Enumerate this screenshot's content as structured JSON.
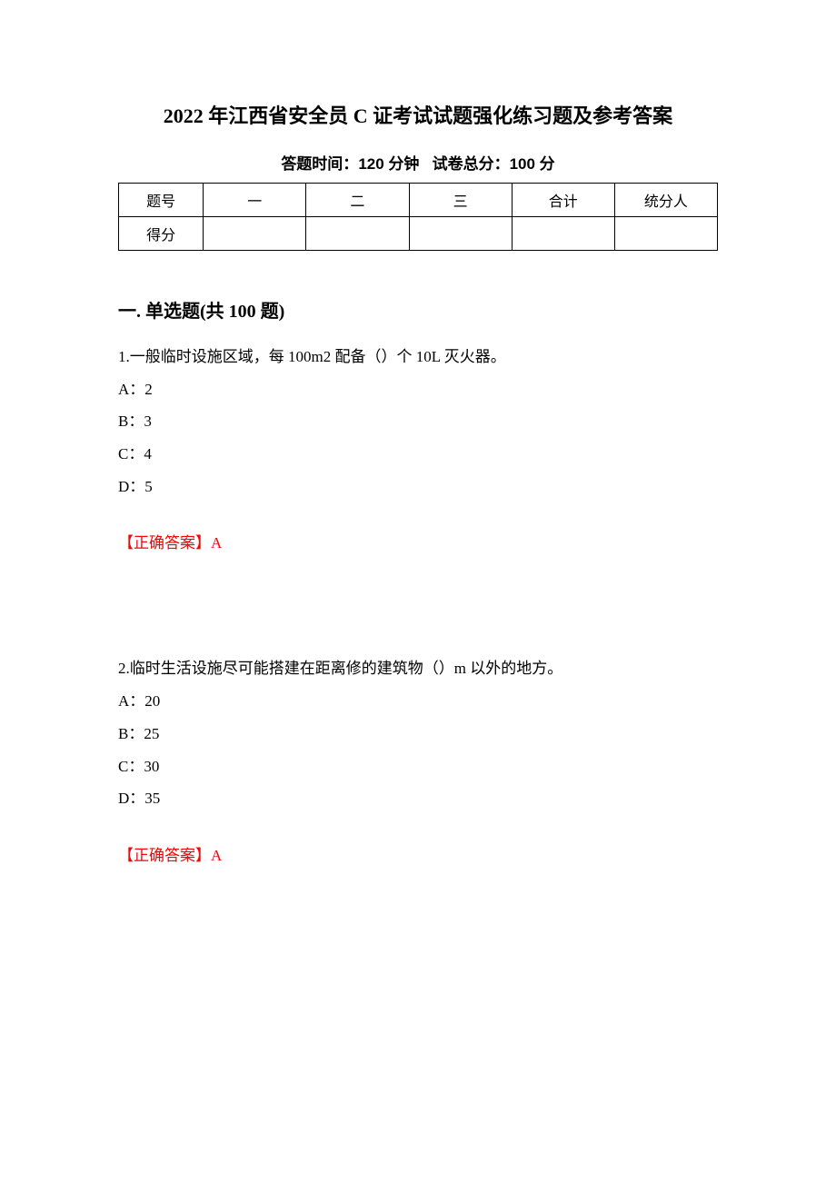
{
  "title": "2022 年江西省安全员 C 证考试试题强化练习题及参考答案",
  "subtitle_time_label": "答题时间：",
  "subtitle_time_value": "120 分钟",
  "subtitle_score_label": "试卷总分：",
  "subtitle_score_value": "100 分",
  "table": {
    "headers": [
      "题号",
      "一",
      "二",
      "三",
      "合计",
      "统分人"
    ],
    "row_label": "得分",
    "row_cells": [
      "",
      "",
      "",
      "",
      ""
    ]
  },
  "section_heading": "一. 单选题(共 100 题)",
  "questions": [
    {
      "number": "1.",
      "text": "一般临时设施区域，每 100m2 配备（）个 10L 灭火器。",
      "options": [
        {
          "label": "A：",
          "value": "2"
        },
        {
          "label": "B：",
          "value": "3"
        },
        {
          "label": "C：",
          "value": "4"
        },
        {
          "label": "D：",
          "value": "5"
        }
      ],
      "answer_label": "【正确答案】",
      "answer_value": "A"
    },
    {
      "number": "2.",
      "text": "临时生活设施尽可能搭建在距离修的建筑物（）m 以外的地方。",
      "options": [
        {
          "label": "A：",
          "value": "20"
        },
        {
          "label": "B：",
          "value": "25"
        },
        {
          "label": "C：",
          "value": "30"
        },
        {
          "label": "D：",
          "value": "35"
        }
      ],
      "answer_label": "【正确答案】",
      "answer_value": "A"
    }
  ],
  "colors": {
    "text": "#000000",
    "answer": "#ff0000",
    "background": "#ffffff",
    "border": "#000000"
  }
}
